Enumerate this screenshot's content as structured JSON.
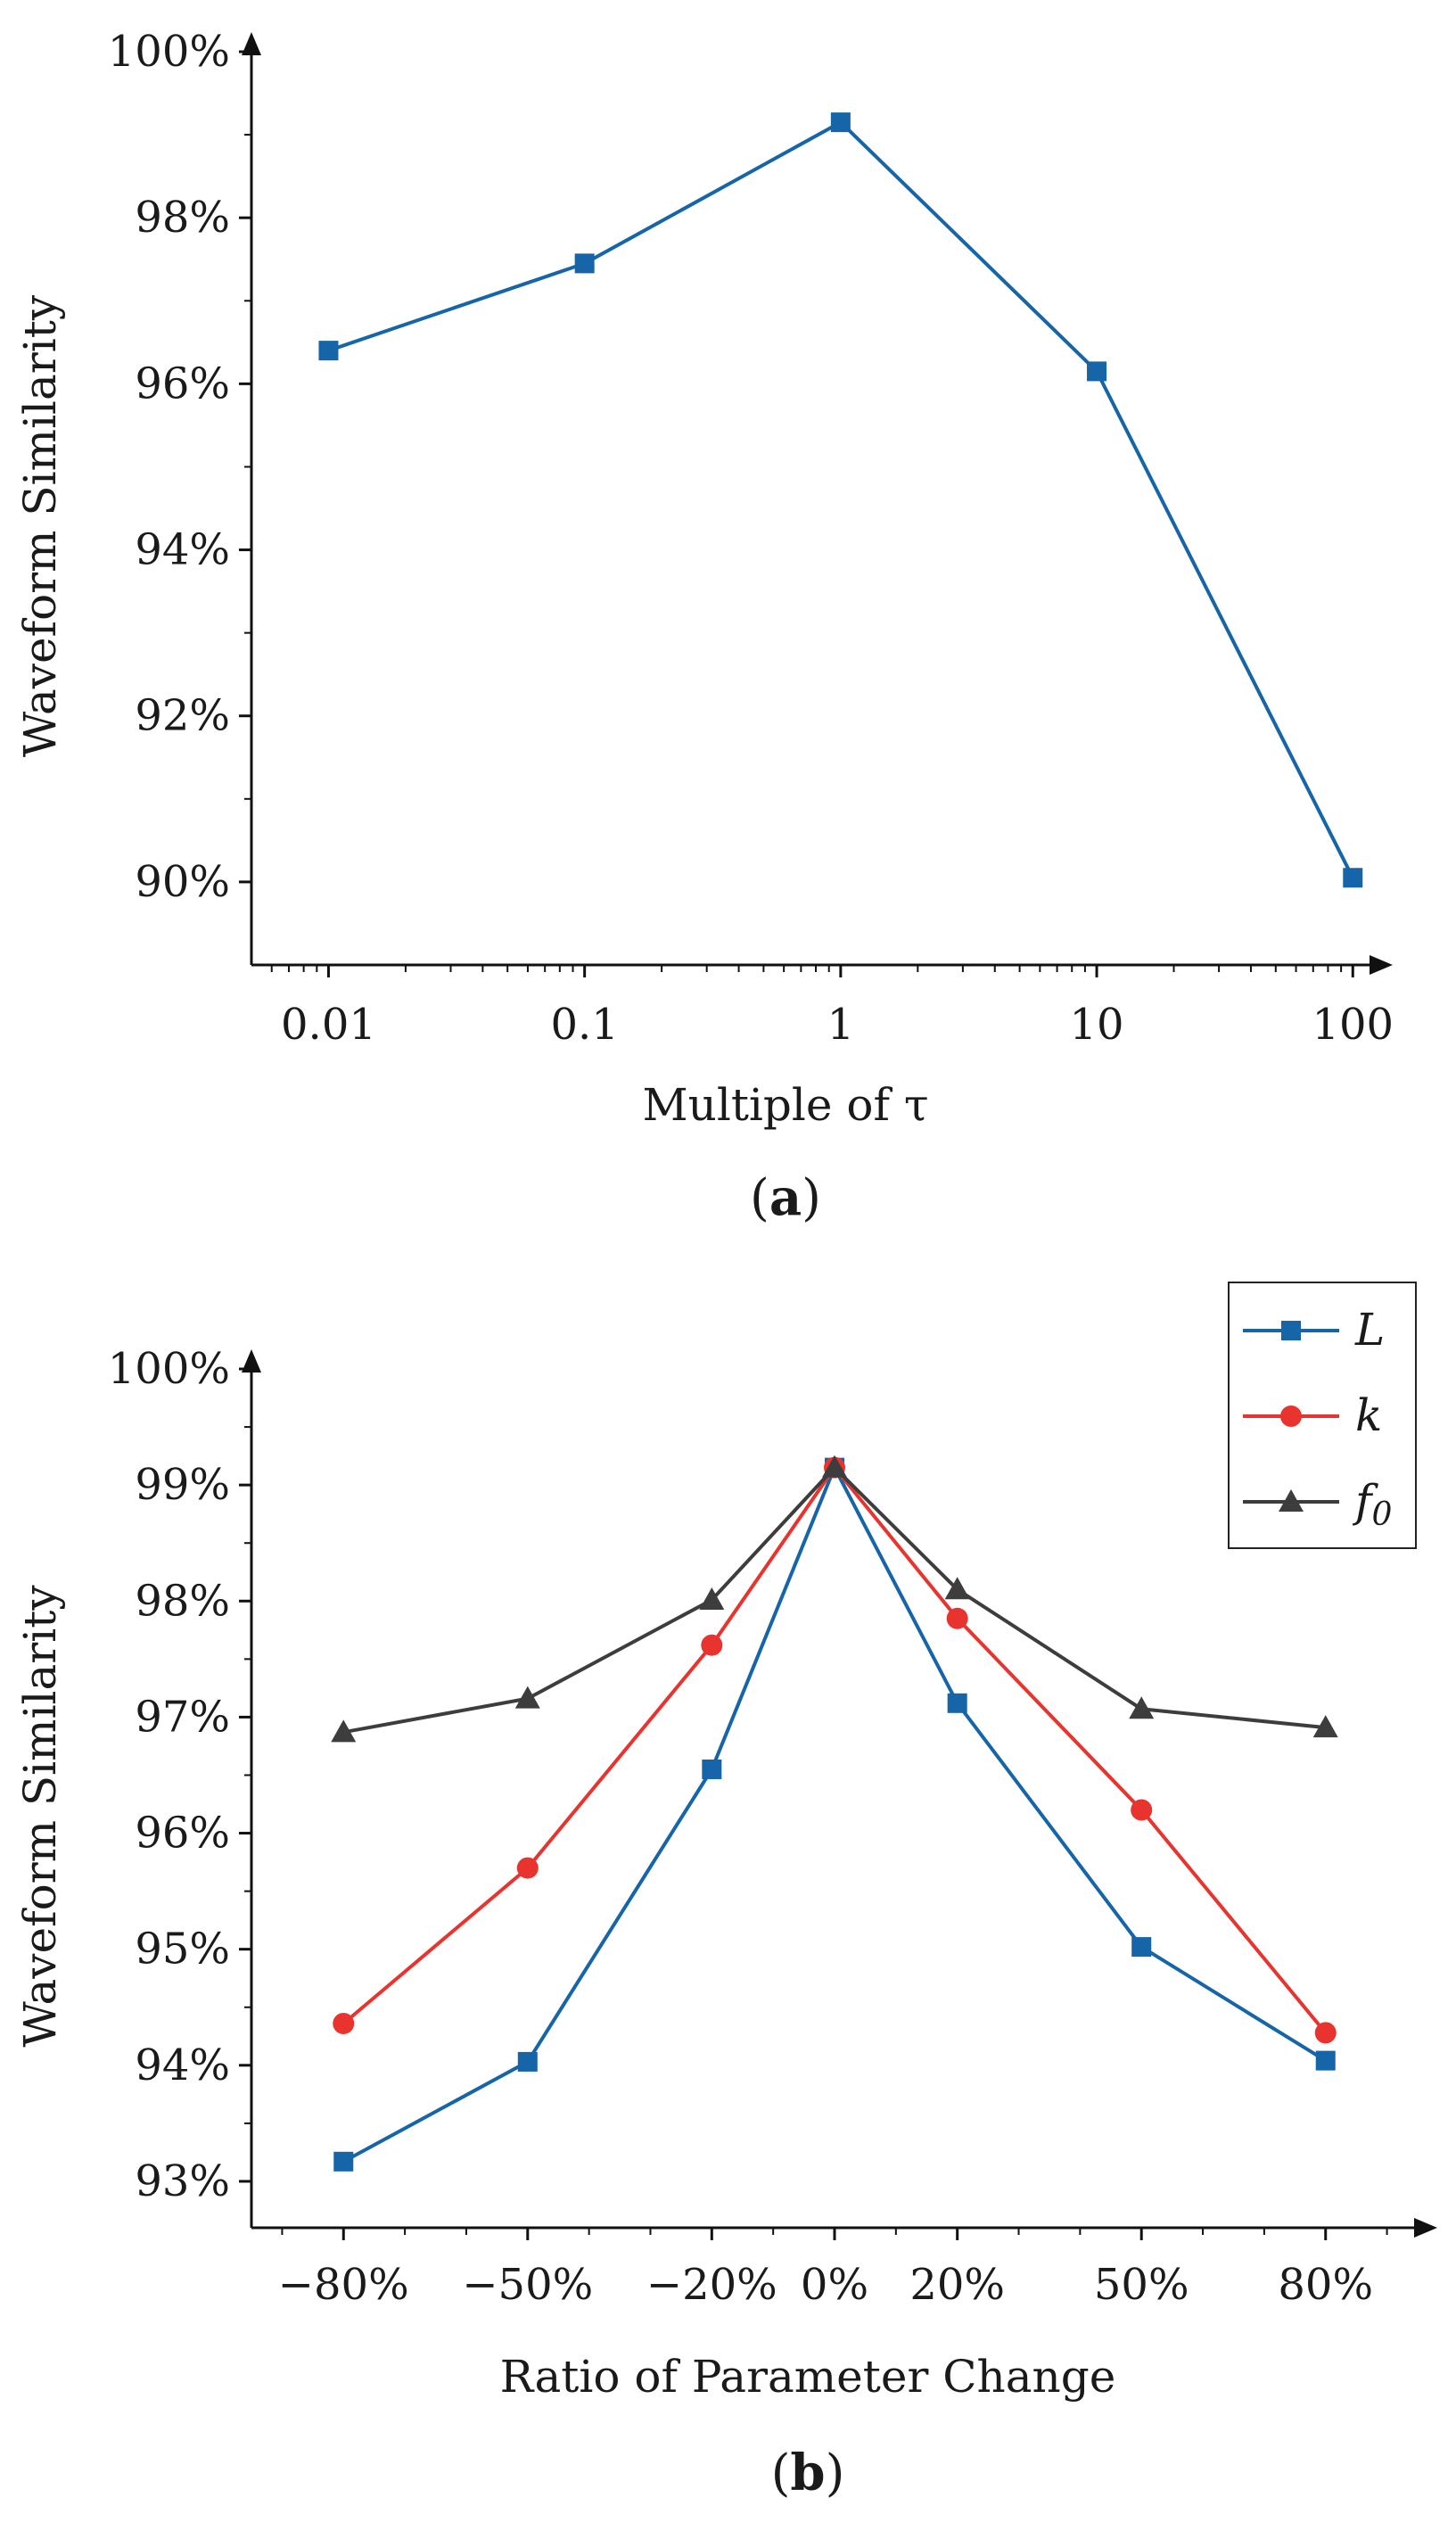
{
  "chart_data": [
    {
      "type": "line",
      "panel_label": {
        "open": "(",
        "letter": "a",
        "close": ")"
      },
      "xlabel": "Multiple of τ",
      "ylabel": "Waveform Similarity",
      "xscale": "log",
      "xlim": [
        0.005,
        120
      ],
      "ylim": [
        89.0,
        100.0
      ],
      "x": [
        0.01,
        0.1,
        1,
        10,
        100
      ],
      "xticklabels": [
        "0.01",
        "0.1",
        "1",
        "10",
        "100"
      ],
      "yticks": [
        90,
        92,
        94,
        96,
        98,
        100
      ],
      "yticklabels": [
        "90%",
        "92%",
        "94%",
        "96%",
        "98%",
        "100%"
      ],
      "series": [
        {
          "name": "Waveform Similarity",
          "color": "#1565a8",
          "marker": "square",
          "values": [
            96.4,
            97.45,
            99.15,
            96.15,
            90.05
          ]
        }
      ]
    },
    {
      "type": "line",
      "panel_label": {
        "open": "(",
        "letter": "b",
        "close": ")"
      },
      "xlabel": "Ratio of Parameter Change",
      "ylabel": "Waveform Similarity",
      "xlim": [
        -95,
        95
      ],
      "ylim": [
        92.6,
        100.0
      ],
      "x": [
        -80,
        -50,
        -20,
        0,
        20,
        50,
        80
      ],
      "xticklabels": [
        "−80%",
        "−50%",
        "−20%",
        "0%",
        "20%",
        "50%",
        "80%"
      ],
      "yticks": [
        93,
        94,
        95,
        96,
        97,
        98,
        99,
        100
      ],
      "yticklabels": [
        "93%",
        "94%",
        "95%",
        "96%",
        "97%",
        "98%",
        "99%",
        "100%"
      ],
      "legend_position": "top-right",
      "series": [
        {
          "name": "L",
          "sub": "",
          "color": "#1565a8",
          "marker": "square",
          "values": [
            93.17,
            94.03,
            96.55,
            99.15,
            97.12,
            95.02,
            94.04
          ]
        },
        {
          "name": "k",
          "sub": "",
          "color": "#e8332e",
          "marker": "circle",
          "values": [
            94.36,
            95.7,
            97.62,
            99.15,
            97.85,
            96.2,
            94.28
          ]
        },
        {
          "name": "f",
          "sub": "0",
          "color": "#3d3d3d",
          "marker": "triangle",
          "values": [
            96.87,
            97.16,
            98.01,
            99.15,
            98.1,
            97.07,
            96.91
          ]
        }
      ]
    }
  ]
}
